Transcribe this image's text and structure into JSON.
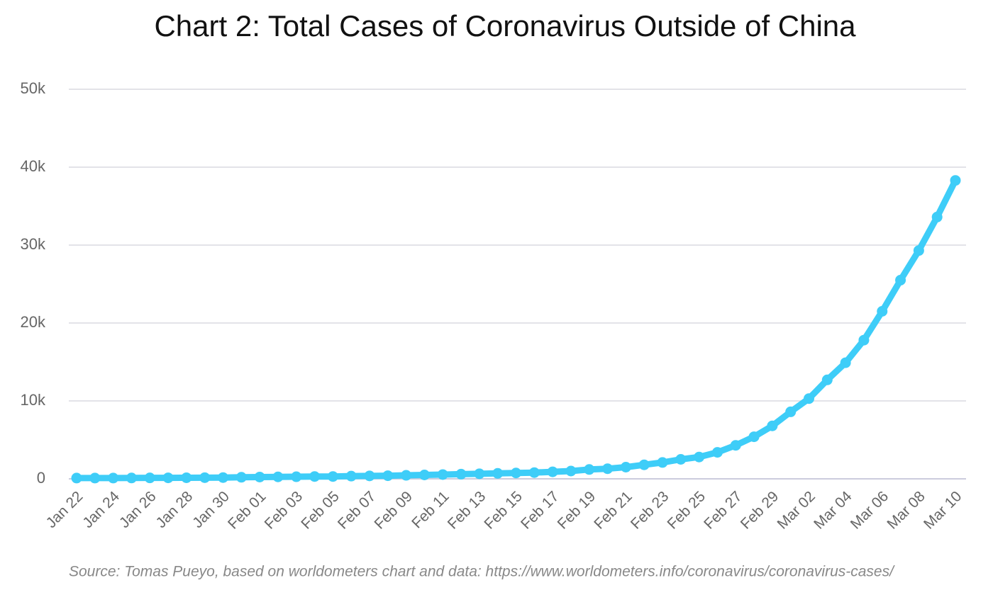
{
  "chart_data": {
    "type": "line",
    "title": "Chart 2: Total Cases of Coronavirus Outside of China",
    "source": "Source: Tomas Pueyo, based on worldometers chart and data: https://www.worldometers.info/coronavirus/coronavirus-cases/",
    "categories": [
      "Jan 22",
      null,
      "Jan 24",
      null,
      "Jan 26",
      null,
      "Jan 28",
      null,
      "Jan 30",
      null,
      "Feb 01",
      null,
      "Feb 03",
      null,
      "Feb 05",
      null,
      "Feb 07",
      null,
      "Feb 09",
      null,
      "Feb 11",
      null,
      "Feb 13",
      null,
      "Feb 15",
      null,
      "Feb 17",
      null,
      "Feb 19",
      null,
      "Feb 21",
      null,
      "Feb 23",
      null,
      "Feb 25",
      null,
      "Feb 27",
      null,
      "Feb 29",
      null,
      "Mar 02",
      null,
      "Mar 04",
      null,
      "Mar 06",
      null,
      "Mar 08",
      null,
      "Mar 10"
    ],
    "values": [
      100,
      100,
      100,
      110,
      120,
      130,
      140,
      150,
      160,
      200,
      230,
      250,
      270,
      300,
      300,
      350,
      380,
      400,
      450,
      500,
      550,
      600,
      650,
      700,
      750,
      800,
      900,
      1000,
      1200,
      1300,
      1500,
      1800,
      2100,
      2500,
      2800,
      3400,
      4300,
      5400,
      6800,
      8600,
      10300,
      12700,
      14900,
      17800,
      21500,
      25500,
      29300,
      33600,
      38300
    ],
    "color": "#3ecdf8",
    "ylim": [
      0,
      50000
    ],
    "yticks": [
      0,
      {
        "value": 10000,
        "label": "10k"
      },
      {
        "value": 20000,
        "label": "20k"
      },
      {
        "value": 30000,
        "label": "30k"
      },
      {
        "value": 40000,
        "label": "40k"
      },
      {
        "value": 50000,
        "label": "50k"
      }
    ],
    "grid": true
  }
}
